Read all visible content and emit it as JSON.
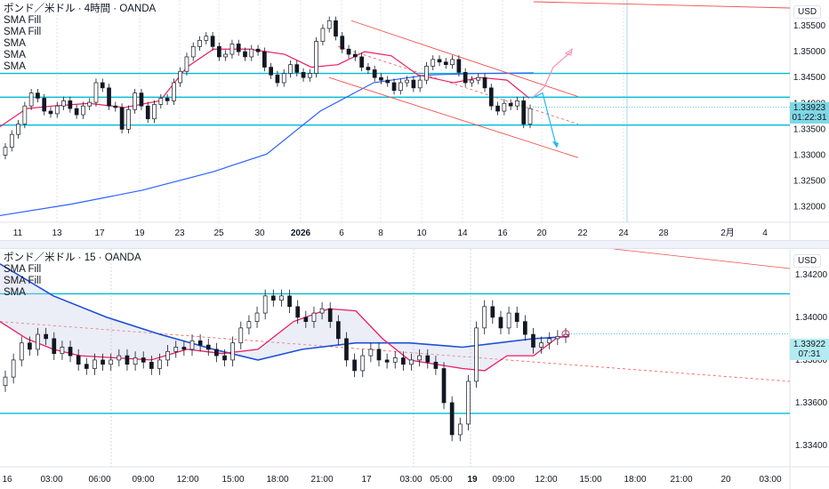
{
  "top": {
    "title": "ポンド／米ドル · 4時間 · OANDA",
    "legend": [
      "SMA Fill",
      "SMA Fill",
      "SMA",
      "SMA",
      "SMA"
    ],
    "currency": "USD",
    "price_label": "1.33923",
    "countdown": "01:22:31",
    "x_labels": [
      "11",
      "13",
      "17",
      "19",
      "23",
      "25",
      "30",
      "2026",
      "6",
      "8",
      "10",
      "14",
      "16",
      "20",
      "22",
      "24",
      "28",
      "2月",
      "4"
    ],
    "y_labels": [
      "1.35500",
      "1.35000",
      "1.34500",
      "1.34000",
      "1.33500",
      "1.33000",
      "1.32500",
      "1.32000"
    ],
    "horizontal_levels": [
      1.3458,
      1.3412,
      1.3358
    ],
    "colors": {
      "level": "#00bcd4",
      "sma_fast": "#e91e63",
      "sma_slow": "#2962ff",
      "channel": "#ef5350",
      "bull": "#131722",
      "bear": "#131722",
      "arrow_up": "#f48fb1",
      "arrow_down": "#29b6f6"
    }
  },
  "bottom": {
    "title": "ポンド／米ドル · 15 · OANDA",
    "legend": [
      "SMA Fill",
      "SMA Fill",
      "SMA"
    ],
    "currency": "USD",
    "price_label": "1.33922",
    "countdown": "07:31",
    "x_labels": [
      "16",
      "03:00",
      "06:00",
      "09:00",
      "12:00",
      "15:00",
      "18:00",
      "21:00",
      "17",
      "03:00",
      "05:00",
      "19",
      "09:00",
      "12:00",
      "15:00",
      "18:00",
      "21:00",
      "20",
      "03:00"
    ],
    "y_labels": [
      "1.34200",
      "1.34000",
      "1.33800",
      "1.33600",
      "1.33400"
    ],
    "horizontal_levels": [
      1.3411,
      1.3355
    ],
    "colors": {
      "level": "#00bcd4",
      "sma_fast": "#e91e63",
      "sma_slow": "#1e4fd8",
      "dash": "#ef5350",
      "fill": "#c5cae9"
    }
  },
  "chart_data": [
    {
      "type": "candlestick",
      "title": "ポンド／米ドル · 4時間 · OANDA",
      "ylim": [
        1.317,
        1.36
      ],
      "y_ticks": [
        1.355,
        1.35,
        1.345,
        1.34,
        1.335,
        1.33,
        1.325,
        1.32
      ],
      "levels": [
        1.3458,
        1.3412,
        1.3358
      ],
      "last_price": 1.33923
    },
    {
      "type": "candlestick",
      "title": "ポンド／米ドル · 15 · OANDA",
      "ylim": [
        1.333,
        1.3432
      ],
      "y_ticks": [
        1.342,
        1.34,
        1.338,
        1.336,
        1.334
      ],
      "levels": [
        1.3411,
        1.3355
      ],
      "last_price": 1.33922
    }
  ]
}
